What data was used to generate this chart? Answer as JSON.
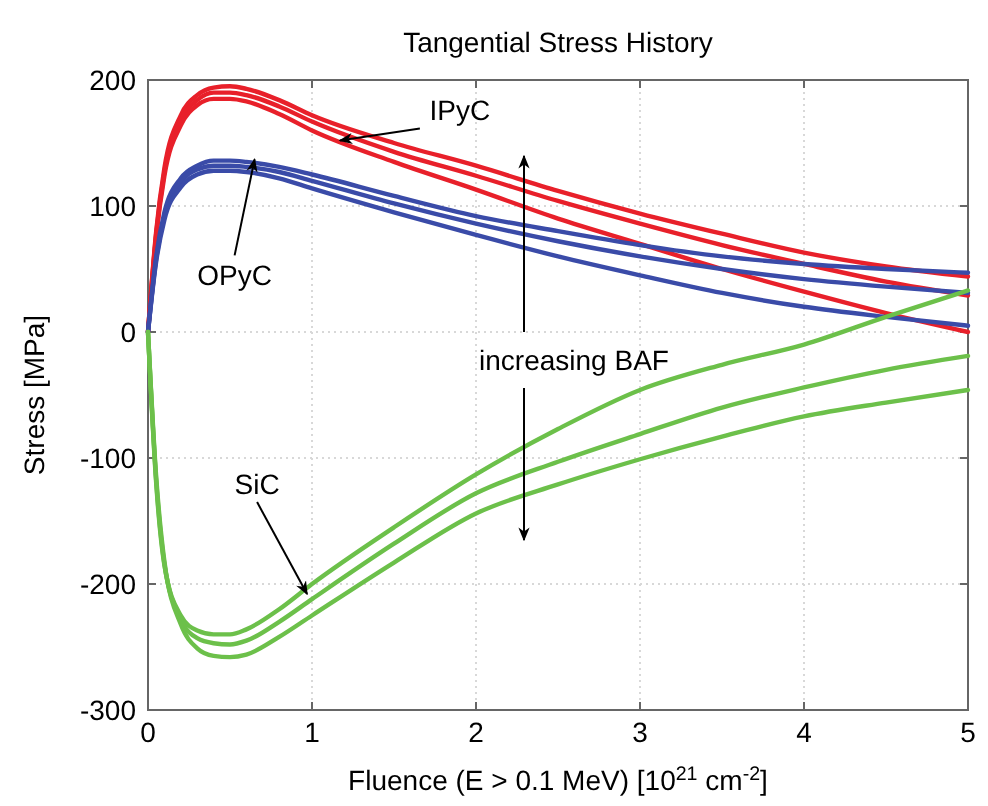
{
  "chart_data": {
    "type": "line",
    "title": "Tangential Stress History",
    "xlabel": "Fluence (E > 0.1 MeV) [10$^{21}$ cm$^{-2}$]",
    "ylabel": "Stress [MPa]",
    "x": [
      0,
      0.05,
      0.1,
      0.2,
      0.3,
      0.4,
      0.5,
      0.6,
      0.8,
      1,
      1.5,
      2,
      2.5,
      3,
      3.5,
      4,
      4.5,
      5
    ],
    "series": [
      {
        "color": "#e8202a",
        "values": [
          0,
          80,
          130,
          172,
          188,
          194,
          195,
          193,
          184,
          172,
          150,
          132,
          112,
          94,
          78,
          63,
          52,
          44
        ]
      },
      {
        "color": "#e8202a",
        "values": [
          0,
          78,
          127,
          168,
          184,
          190,
          190,
          188,
          179,
          167,
          143,
          124,
          104,
          86,
          69,
          54,
          40,
          29
        ]
      },
      {
        "color": "#e8202a",
        "values": [
          0,
          76,
          124,
          164,
          180,
          185,
          185,
          183,
          173,
          160,
          135,
          113,
          90,
          70,
          50,
          32,
          15,
          0
        ]
      },
      {
        "color": "#3a4ba8",
        "values": [
          0,
          60,
          95,
          122,
          132,
          136,
          136,
          135,
          131,
          125,
          108,
          92,
          80,
          69,
          60,
          54,
          50,
          47
        ]
      },
      {
        "color": "#3a4ba8",
        "values": [
          0,
          58,
          92,
          119,
          129,
          132,
          132,
          131,
          127,
          120,
          102,
          86,
          72,
          60,
          50,
          42,
          36,
          31
        ]
      },
      {
        "color": "#3a4ba8",
        "values": [
          0,
          56,
          89,
          115,
          125,
          128,
          128,
          127,
          122,
          114,
          95,
          77,
          60,
          45,
          31,
          20,
          12,
          5
        ]
      },
      {
        "color": "#6cc04a",
        "values": [
          0,
          -120,
          -185,
          -225,
          -237,
          -240,
          -240,
          -236,
          -220,
          -200,
          -155,
          -113,
          -77,
          -46,
          -26,
          -10,
          12,
          33
        ]
      },
      {
        "color": "#6cc04a",
        "values": [
          0,
          -118,
          -184,
          -228,
          -243,
          -247,
          -248,
          -245,
          -230,
          -212,
          -168,
          -128,
          -103,
          -81,
          -60,
          -44,
          -30,
          -19
        ]
      },
      {
        "color": "#6cc04a",
        "values": [
          0,
          -115,
          -182,
          -232,
          -251,
          -257,
          -258,
          -256,
          -242,
          -225,
          -183,
          -144,
          -121,
          -101,
          -83,
          -67,
          -56,
          -46
        ]
      }
    ],
    "annotations": [
      {
        "text": "IPyC",
        "x": 1.17,
        "y": 152
      },
      {
        "text": "OPyC",
        "x": 0.65,
        "y": 137
      },
      {
        "text": "SiC",
        "x": 0.97,
        "y": -208
      },
      "increasing BAF"
    ],
    "xlim": [
      0,
      5
    ],
    "ylim": [
      -300,
      200
    ],
    "xticks": [
      0,
      1,
      2,
      3,
      4,
      5
    ],
    "yticks": [
      -300,
      -200,
      -100,
      0,
      100,
      200
    ],
    "grid": true,
    "marker": "none",
    "line_style": "solid"
  }
}
